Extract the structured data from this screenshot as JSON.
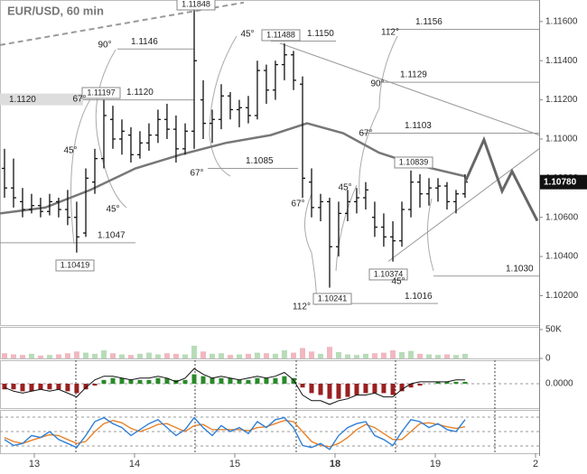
{
  "chart_data": {
    "type": "ohlc",
    "title": "EUR/USD, 60 min",
    "x": [
      -0.297,
      -0.207,
      -0.117,
      -0.027,
      0.063,
      0.153,
      0.243,
      0.333,
      0.423,
      0.514,
      0.604,
      0.694,
      0.784,
      0.874,
      0.964,
      1.054,
      1.144,
      1.234,
      1.324,
      1.414,
      1.505,
      1.595,
      1.685,
      1.775,
      1.865,
      1.955,
      2.045,
      2.135,
      2.225,
      2.315,
      2.405,
      2.495,
      2.586,
      2.676,
      2.766,
      2.856,
      2.946,
      3.036,
      3.126,
      3.216,
      3.306,
      3.396,
      3.486,
      3.577,
      3.667,
      3.757,
      3.847,
      3.937,
      4.027,
      4.117,
      4.207,
      4.297
    ],
    "open": [
      1.1085,
      1.1075,
      1.1068,
      1.1064,
      1.1066,
      1.1063,
      1.1068,
      1.1064,
      1.106,
      1.1052,
      1.1078,
      1.109,
      1.111,
      1.11,
      1.1102,
      1.1092,
      1.1098,
      1.1102,
      1.111,
      1.1105,
      1.1095,
      1.1104,
      1.112,
      1.1108,
      1.111,
      1.1122,
      1.1115,
      1.1116,
      1.1112,
      1.1135,
      1.1125,
      1.1138,
      1.1143,
      1.1128,
      1.1078,
      1.1065,
      1.1068,
      1.1045,
      1.1062,
      1.1068,
      1.107,
      1.106,
      1.1055,
      1.105,
      1.1048,
      1.1064,
      1.1078,
      1.1072,
      1.1075,
      1.1076,
      1.1068,
      1.1072
    ],
    "high": [
      1.1095,
      1.109,
      1.1075,
      1.1072,
      1.107,
      1.1072,
      1.107,
      1.1074,
      1.1068,
      1.1085,
      1.1095,
      1.112,
      1.1117,
      1.111,
      1.1106,
      1.1104,
      1.1108,
      1.1115,
      1.1118,
      1.1112,
      1.1108,
      1.11848,
      1.113,
      1.1115,
      1.1128,
      1.1124,
      1.112,
      1.1122,
      1.114,
      1.1138,
      1.114,
      1.11488,
      1.1145,
      1.1132,
      1.1085,
      1.1072,
      1.107,
      1.1068,
      1.1074,
      1.1075,
      1.1078,
      1.1068,
      1.1062,
      1.1058,
      1.1068,
      1.10839,
      1.1082,
      1.108,
      1.108,
      1.1078,
      1.1074,
      1.1082
    ],
    "low": [
      1.107,
      1.1065,
      1.106,
      1.1062,
      1.106,
      1.1061,
      1.106,
      1.1056,
      1.1042,
      1.105,
      1.1072,
      1.1085,
      1.1095,
      1.1092,
      1.1088,
      1.109,
      1.1094,
      1.1098,
      1.11,
      1.1088,
      1.1092,
      1.1095,
      1.11,
      1.1098,
      1.1105,
      1.111,
      1.1106,
      1.1108,
      1.111,
      1.1118,
      1.112,
      1.113,
      1.1125,
      1.107,
      1.106,
      1.1058,
      1.10241,
      1.104,
      1.1058,
      1.1062,
      1.1064,
      1.105,
      1.1045,
      1.10374,
      1.1045,
      1.106,
      1.1065,
      1.1066,
      1.1068,
      1.1064,
      1.1062,
      1.107
    ],
    "close": [
      1.1075,
      1.107,
      1.1064,
      1.1066,
      1.1063,
      1.1068,
      1.1064,
      1.106,
      1.105,
      1.108,
      1.109,
      1.1112,
      1.11,
      1.1104,
      1.1092,
      1.1098,
      1.1102,
      1.111,
      1.1105,
      1.1095,
      1.1104,
      1.114,
      1.1108,
      1.111,
      1.1122,
      1.1115,
      1.1116,
      1.1112,
      1.1135,
      1.1125,
      1.1138,
      1.1143,
      1.113,
      1.108,
      1.1065,
      1.1068,
      1.1045,
      1.1062,
      1.1068,
      1.107,
      1.1074,
      1.1055,
      1.105,
      1.1048,
      1.1064,
      1.1078,
      1.1072,
      1.1075,
      1.1076,
      1.1068,
      1.1072,
      1.1078
    ],
    "ma": {
      "x": [
        -0.342,
        0.108,
        0.559,
        1.009,
        1.459,
        1.91,
        2.36,
        2.721,
        3.081,
        3.441,
        3.802,
        4.297
      ],
      "values": [
        1.1062,
        1.1065,
        1.1074,
        1.1085,
        1.1092,
        1.1098,
        1.1102,
        1.1108,
        1.1103,
        1.1093,
        1.1087,
        1.1081
      ]
    },
    "projection": {
      "x": [
        4.297,
        4.486,
        4.667,
        4.766,
        5.018
      ],
      "values": [
        1.1078,
        1.10996,
        1.10734,
        1.10835,
        1.10582
      ]
    },
    "trend_lines": [
      {
        "x": [
          2.45,
          5.036
        ],
        "values": [
          1.11489,
          1.1102
        ]
      },
      {
        "x": [
          3.532,
          5.036
        ],
        "values": [
          1.10375,
          1.1095
        ]
      },
      {
        "x": [
          -0.342,
          2.09
        ],
        "values": [
          1.1148,
          1.11697
        ]
      }
    ],
    "levels": [
      {
        "value": 1.1146,
        "label": "1.1146"
      },
      {
        "value": 1.112,
        "label": "1.1120"
      },
      {
        "value": 1.115,
        "label": "1.1150"
      },
      {
        "value": 1.1156,
        "label": "1.1156"
      },
      {
        "value": 1.1129,
        "label": "1.1129"
      },
      {
        "value": 1.1103,
        "label": "1.1103"
      },
      {
        "value": 1.1085,
        "label": "1.1085"
      },
      {
        "value": 1.1047,
        "label": "1.1047"
      },
      {
        "value": 1.103,
        "label": "1.1030"
      },
      {
        "value": 1.1016,
        "label": "1.1016"
      }
    ],
    "left_label": {
      "value": 1.112,
      "label": "1.1120"
    },
    "extremes": [
      {
        "value": 1.11848,
        "label": "1.11848"
      },
      {
        "value": 1.11488,
        "label": "1.11488"
      },
      {
        "value": 1.11197,
        "label": "1.11197"
      },
      {
        "value": 1.10839,
        "label": "1.10839"
      },
      {
        "value": 1.10419,
        "label": "1.10419"
      },
      {
        "value": 1.10374,
        "label": "1.10374"
      },
      {
        "value": 1.10241,
        "label": "1.10241"
      }
    ],
    "angle_labels": [
      "90°",
      "67°",
      "45°",
      "45°",
      "67°",
      "45°",
      "67°",
      "112°",
      "45°",
      "67°",
      "90°",
      "112°",
      "45°"
    ],
    "current_price": {
      "value": 1.1078,
      "label": "1.10780"
    },
    "xlim": [
      -0.342,
      5.036
    ],
    "xticks": [
      {
        "value": 0,
        "label": "13"
      },
      {
        "value": 1,
        "label": "14"
      },
      {
        "value": 2,
        "label": "15"
      },
      {
        "value": 3,
        "label": "18"
      },
      {
        "value": 4,
        "label": "19"
      },
      {
        "value": 5,
        "label": "2"
      }
    ],
    "ylim": [
      1.1005,
      1.1171
    ],
    "yticks": [
      {
        "value": 1.102,
        "label": "1.10200"
      },
      {
        "value": 1.104,
        "label": "1.10400"
      },
      {
        "value": 1.106,
        "label": "1.10600"
      },
      {
        "value": 1.108,
        "label": "1.10800"
      },
      {
        "value": 1.11,
        "label": "1.11000"
      },
      {
        "value": 1.112,
        "label": "1.11200"
      },
      {
        "value": 1.114,
        "label": "1.11400"
      },
      {
        "value": 1.116,
        "label": "1.11600"
      }
    ],
    "volume": {
      "values": [
        9000,
        7000,
        6000,
        8000,
        5000,
        6000,
        7000,
        9000,
        12000,
        10000,
        8000,
        14000,
        9000,
        7000,
        6000,
        8000,
        10000,
        7000,
        9000,
        8000,
        7000,
        22000,
        12000,
        8000,
        9000,
        6000,
        7000,
        8000,
        10000,
        9000,
        8000,
        14000,
        10000,
        18000,
        12000,
        8000,
        20000,
        11000,
        7000,
        6000,
        8000,
        9000,
        10000,
        14000,
        11000,
        13000,
        8000,
        7000,
        6000,
        7000,
        6000,
        8000
      ],
      "ylim": [
        0,
        50000
      ],
      "yticks": [
        {
          "value": 50000,
          "label": "50K"
        },
        0
      ]
    },
    "macd": {
      "histogram": [
        -0.0003,
        -0.0003,
        -0.0004,
        -0.0004,
        -0.0003,
        -0.0003,
        -0.0003,
        -0.0004,
        -0.0005,
        -0.0003,
        -0.0001,
        0.0002,
        0.0003,
        0.0003,
        0.0002,
        0.0002,
        0.0002,
        0.0003,
        0.0003,
        0.0002,
        0.0002,
        0.0005,
        0.0004,
        0.0003,
        0.0003,
        0.0003,
        0.0002,
        0.0002,
        0.0003,
        0.0003,
        0.0003,
        0.0004,
        0.0003,
        -0.0002,
        -0.0005,
        -0.0006,
        -0.0008,
        -0.0008,
        -0.0007,
        -0.0006,
        -0.0005,
        -0.0005,
        -0.0005,
        -0.0006,
        -0.0004,
        -0.0002,
        -0.0001,
        0,
        0.0001,
        0.0001,
        0.0001,
        0.0001
      ],
      "line": [
        -0.0002,
        -0.0004,
        -0.0005,
        -0.0004,
        -0.0003,
        -0.0004,
        -0.0003,
        -0.0005,
        -0.0007,
        -0.0002,
        0.0002,
        0.0004,
        0.0004,
        0.0003,
        0.0002,
        0.0003,
        0.0003,
        0.0004,
        0.0003,
        0.0001,
        0.0003,
        0.0008,
        0.0005,
        0.0003,
        0.0004,
        0.0003,
        0.0002,
        0.0003,
        0.0004,
        0.0003,
        0.0004,
        0.0006,
        0.0002,
        -0.0006,
        -0.0009,
        -0.0009,
        -0.0011,
        -0.0009,
        -0.0008,
        -0.0006,
        -0.0006,
        -0.0005,
        -0.0007,
        -0.0007,
        -0.0003,
        0,
        0.0001,
        0.0001,
        0.0001,
        0.0001,
        0.0002,
        0.0002
      ],
      "ylim": [
        -0.0012,
        0.0012
      ],
      "yticks": [
        {
          "value": 0,
          "label": "0.0000"
        }
      ]
    },
    "stochastic": {
      "k": [
        30,
        15,
        20,
        40,
        35,
        50,
        30,
        20,
        10,
        40,
        75,
        85,
        70,
        60,
        40,
        55,
        70,
        80,
        60,
        40,
        55,
        85,
        60,
        40,
        65,
        50,
        60,
        45,
        75,
        60,
        80,
        85,
        60,
        15,
        10,
        20,
        5,
        40,
        60,
        70,
        75,
        40,
        30,
        15,
        50,
        80,
        75,
        60,
        70,
        55,
        50,
        80
      ],
      "d": [
        35,
        25,
        20,
        28,
        35,
        42,
        40,
        30,
        20,
        25,
        50,
        70,
        78,
        72,
        58,
        50,
        58,
        68,
        70,
        60,
        50,
        65,
        68,
        55,
        55,
        55,
        55,
        52,
        60,
        62,
        70,
        78,
        75,
        50,
        25,
        15,
        12,
        20,
        35,
        55,
        68,
        60,
        45,
        30,
        30,
        50,
        70,
        72,
        68,
        62,
        58,
        62
      ],
      "ylim": [
        0,
        100
      ]
    }
  }
}
